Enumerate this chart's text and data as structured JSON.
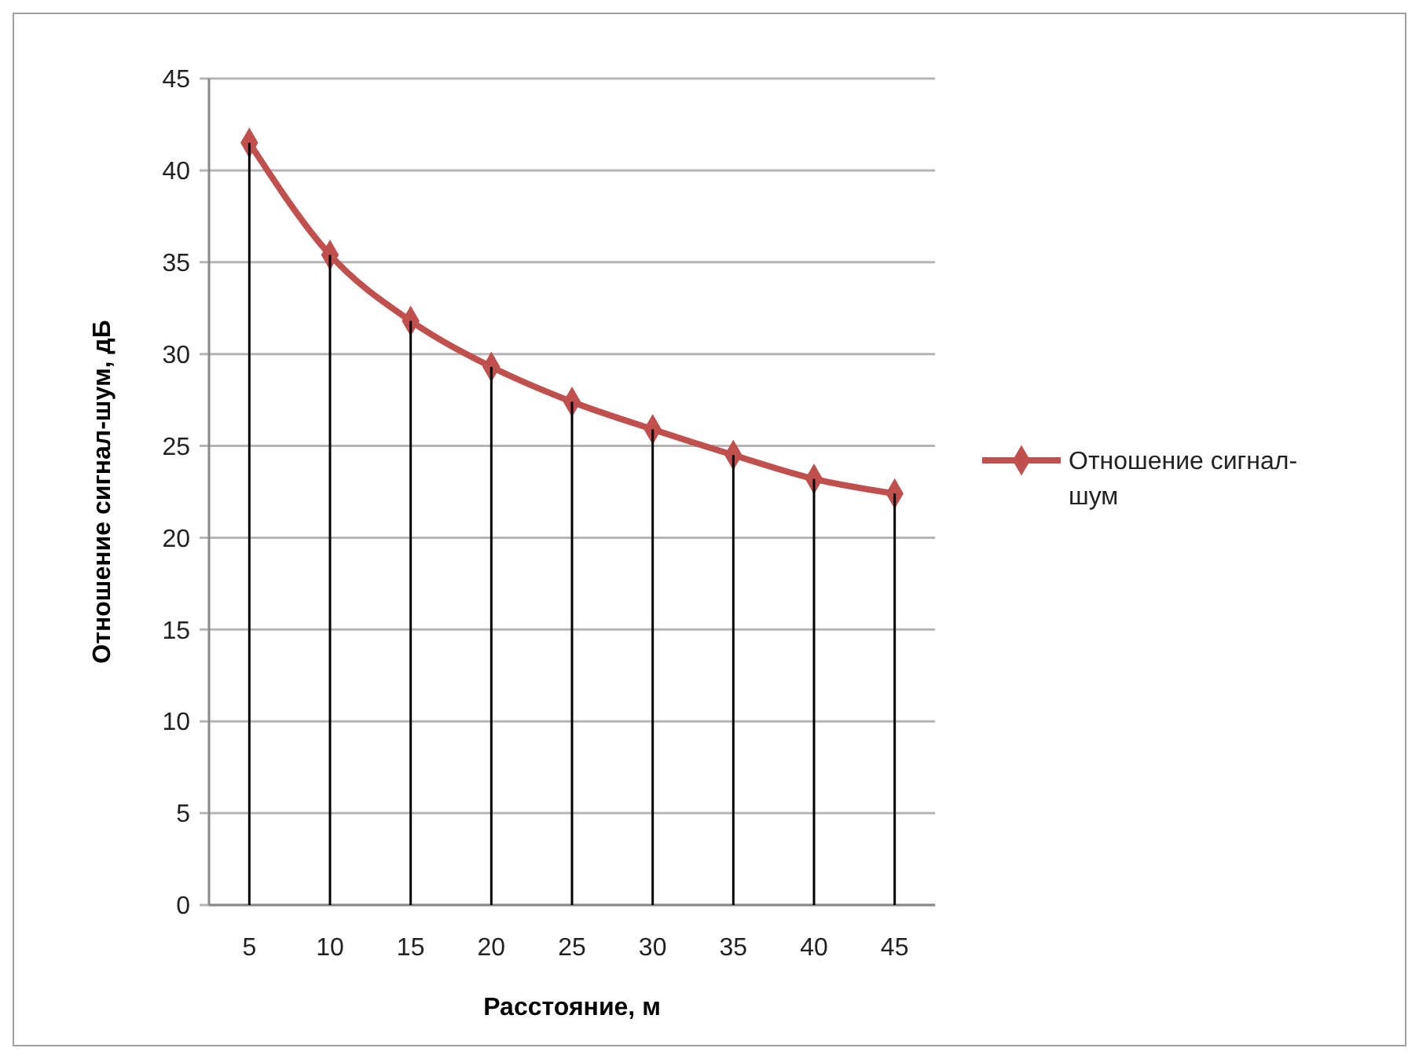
{
  "chart_data": {
    "type": "line",
    "xlabel": "Расстояние, м",
    "ylabel": "Отношение сигнал-шум, дБ",
    "categories": [
      "5",
      "10",
      "15",
      "20",
      "25",
      "30",
      "35",
      "40",
      "45"
    ],
    "series": [
      {
        "type": "bar",
        "color": "#000000",
        "values": [
          41.5,
          35.4,
          31.8,
          29.3,
          27.4,
          25.9,
          24.5,
          23.2,
          22.4
        ]
      },
      {
        "name": "Отношение сигнал-шум",
        "color": "#c0504d",
        "values": [
          41.5,
          35.4,
          31.8,
          29.3,
          27.4,
          25.9,
          24.5,
          23.2,
          22.4
        ]
      }
    ],
    "ylim": [
      0,
      45
    ],
    "yticks": [
      0,
      5,
      10,
      15,
      20,
      25,
      30,
      35,
      40,
      45
    ],
    "grid": "y",
    "legend": "right",
    "marker": "diamond",
    "line_style": "solid"
  }
}
